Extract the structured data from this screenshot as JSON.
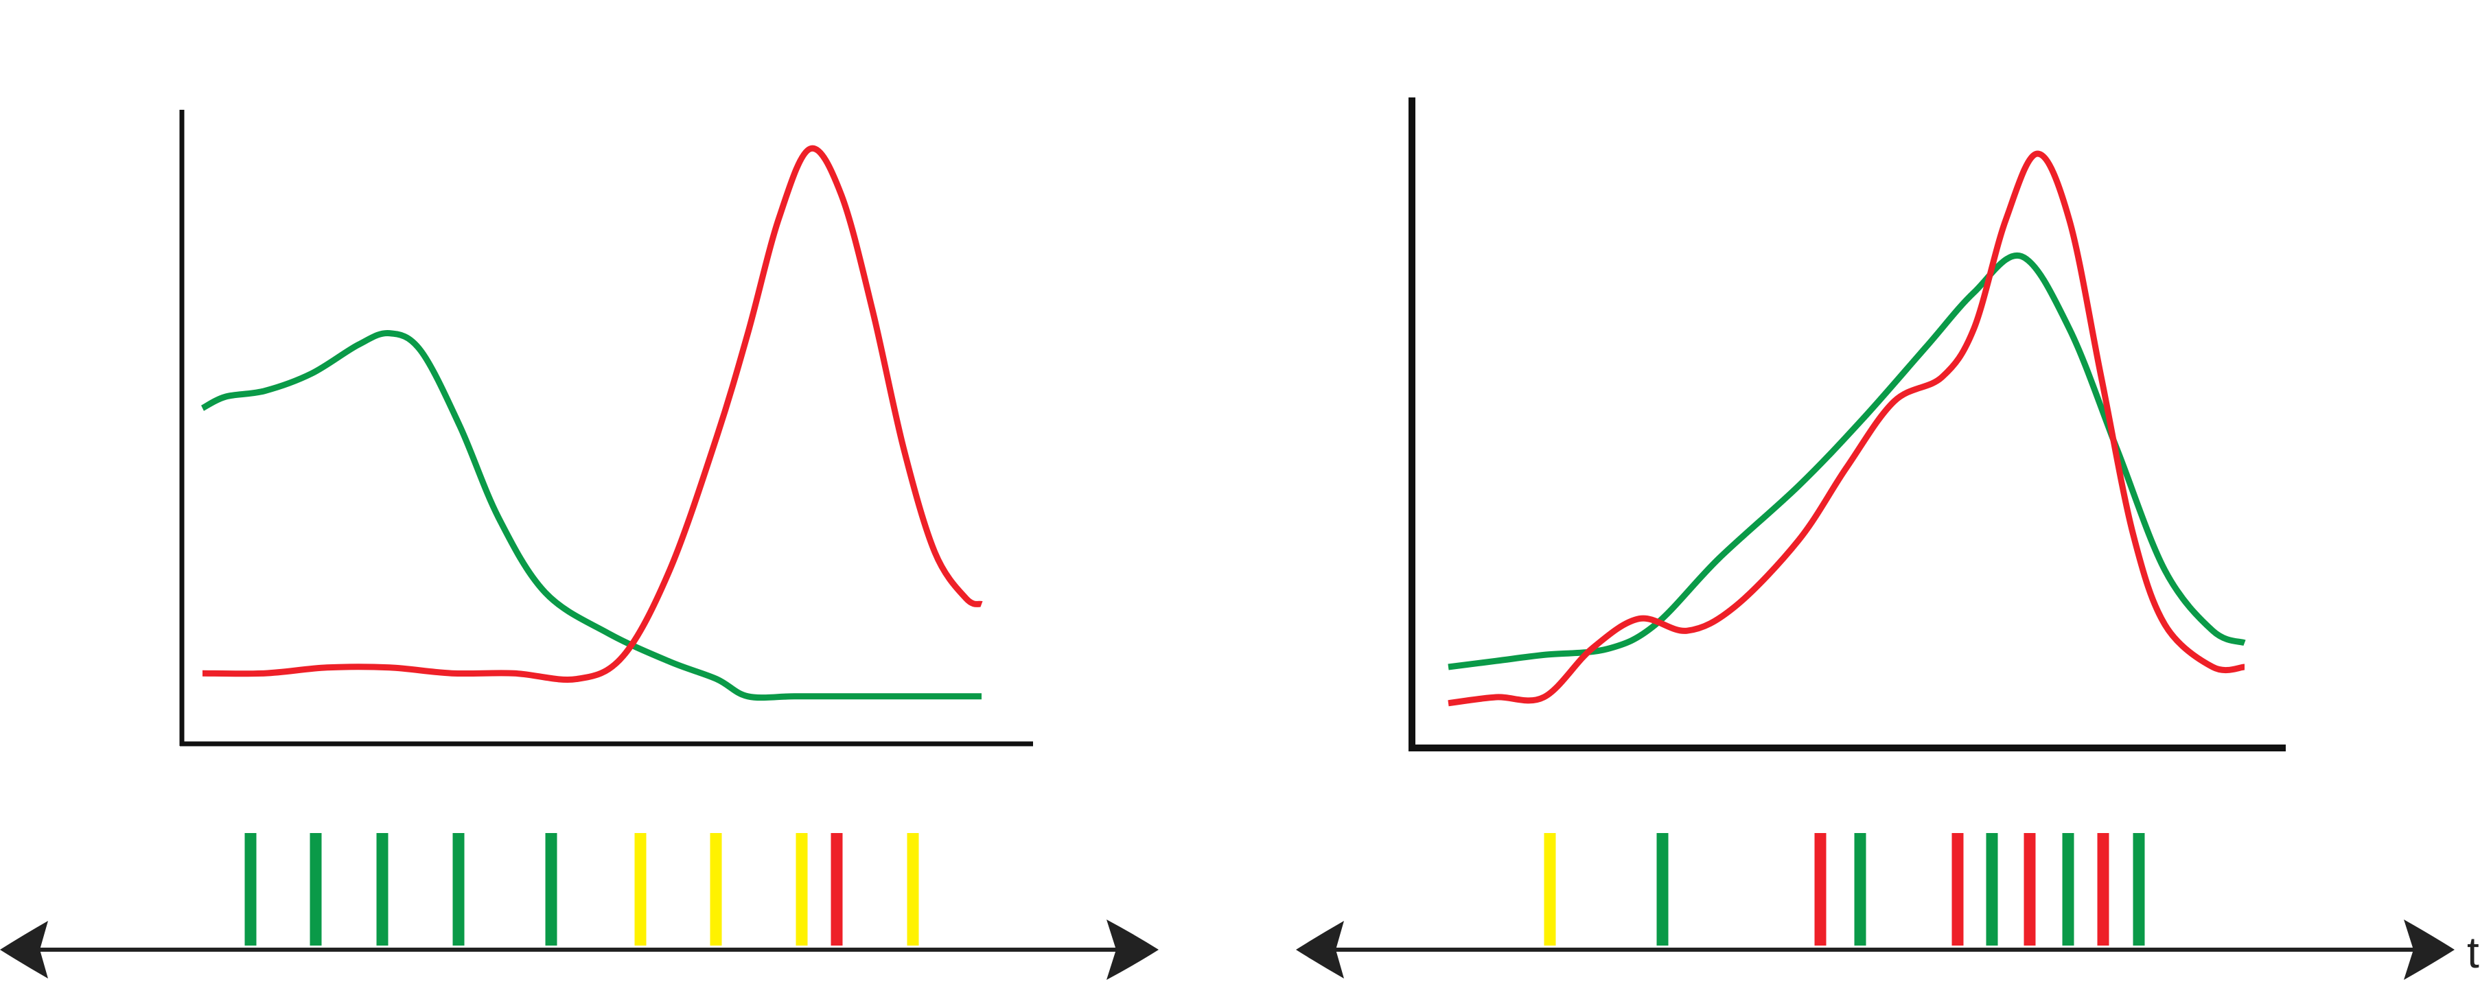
{
  "colors": {
    "green": "#0a9a48",
    "red": "#ee2028",
    "yellow": "#fff200",
    "axis": "#111111",
    "timeline": "#222222"
  },
  "left_panel": {
    "curves": [
      {
        "name": "green",
        "color": "green",
        "points": [
          [
            0.0,
            0.53
          ],
          [
            0.03,
            0.55
          ],
          [
            0.08,
            0.56
          ],
          [
            0.14,
            0.59
          ],
          [
            0.2,
            0.64
          ],
          [
            0.24,
            0.66
          ],
          [
            0.28,
            0.63
          ],
          [
            0.33,
            0.5
          ],
          [
            0.38,
            0.34
          ],
          [
            0.44,
            0.21
          ],
          [
            0.52,
            0.14
          ],
          [
            0.6,
            0.09
          ],
          [
            0.66,
            0.06
          ],
          [
            0.7,
            0.03
          ],
          [
            0.76,
            0.03
          ],
          [
            0.84,
            0.03
          ],
          [
            1.0,
            0.03
          ]
        ]
      },
      {
        "name": "red",
        "color": "red",
        "points": [
          [
            0.0,
            0.07
          ],
          [
            0.08,
            0.07
          ],
          [
            0.16,
            0.08
          ],
          [
            0.24,
            0.08
          ],
          [
            0.32,
            0.07
          ],
          [
            0.4,
            0.07
          ],
          [
            0.48,
            0.06
          ],
          [
            0.54,
            0.1
          ],
          [
            0.6,
            0.25
          ],
          [
            0.66,
            0.48
          ],
          [
            0.7,
            0.66
          ],
          [
            0.74,
            0.86
          ],
          [
            0.78,
            0.98
          ],
          [
            0.82,
            0.9
          ],
          [
            0.86,
            0.7
          ],
          [
            0.9,
            0.46
          ],
          [
            0.94,
            0.28
          ],
          [
            0.98,
            0.2
          ],
          [
            1.0,
            0.19
          ]
        ]
      }
    ],
    "events": [
      "green",
      "green",
      "green",
      "green",
      "green",
      "yellow",
      "yellow",
      "yellow",
      "red",
      "yellow"
    ]
  },
  "right_panel": {
    "curves": [
      {
        "name": "green",
        "color": "green",
        "points": [
          [
            0.0,
            0.1
          ],
          [
            0.06,
            0.11
          ],
          [
            0.12,
            0.12
          ],
          [
            0.2,
            0.13
          ],
          [
            0.26,
            0.17
          ],
          [
            0.34,
            0.28
          ],
          [
            0.44,
            0.4
          ],
          [
            0.52,
            0.51
          ],
          [
            0.6,
            0.63
          ],
          [
            0.66,
            0.72
          ],
          [
            0.72,
            0.78
          ],
          [
            0.78,
            0.66
          ],
          [
            0.84,
            0.46
          ],
          [
            0.9,
            0.26
          ],
          [
            0.96,
            0.16
          ],
          [
            1.0,
            0.14
          ]
        ]
      },
      {
        "name": "red",
        "color": "red",
        "points": [
          [
            0.0,
            0.04
          ],
          [
            0.06,
            0.05
          ],
          [
            0.12,
            0.05
          ],
          [
            0.18,
            0.13
          ],
          [
            0.24,
            0.18
          ],
          [
            0.3,
            0.16
          ],
          [
            0.36,
            0.2
          ],
          [
            0.44,
            0.31
          ],
          [
            0.5,
            0.43
          ],
          [
            0.56,
            0.54
          ],
          [
            0.62,
            0.58
          ],
          [
            0.66,
            0.66
          ],
          [
            0.7,
            0.84
          ],
          [
            0.74,
            0.95
          ],
          [
            0.78,
            0.84
          ],
          [
            0.82,
            0.58
          ],
          [
            0.86,
            0.32
          ],
          [
            0.9,
            0.17
          ],
          [
            0.96,
            0.1
          ],
          [
            1.0,
            0.1
          ]
        ]
      }
    ],
    "events": [
      "yellow",
      "green",
      "red",
      "green",
      "red",
      "green",
      "red",
      "green",
      "red",
      "green"
    ]
  },
  "time_label": "t"
}
